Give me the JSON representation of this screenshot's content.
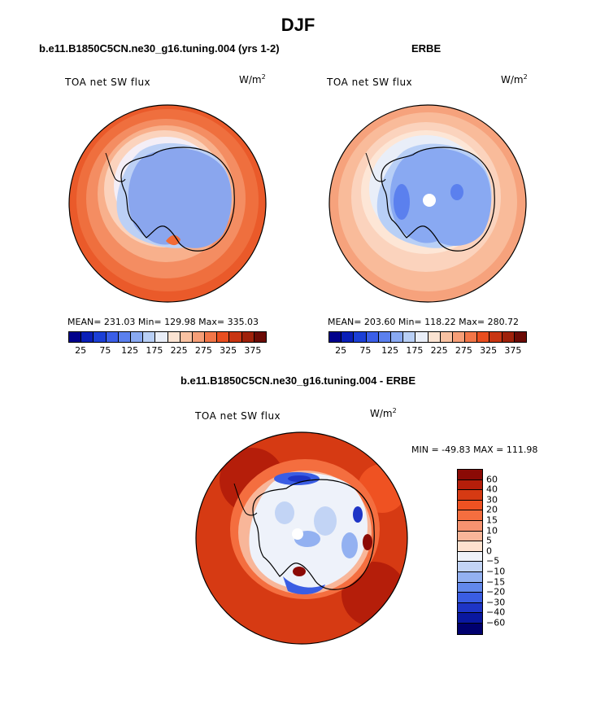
{
  "title": "DJF",
  "panels": {
    "model": {
      "title": "b.e11.B1850C5CN.ne30_g16.tuning.004 (yrs 1-2)",
      "var_label": "TOA net SW flux",
      "units_base": "W/m",
      "units_exp": "2",
      "stats": "MEAN= 231.03   Min= 129.98   Max= 335.03"
    },
    "obs": {
      "title": "ERBE",
      "var_label": "TOA net SW flux",
      "units_base": "W/m",
      "units_exp": "2",
      "stats": "MEAN= 203.60   Min= 118.22   Max= 280.72"
    },
    "diff": {
      "title": "b.e11.B1850C5CN.ne30_g16.tuning.004 - ERBE",
      "var_label": "TOA net SW flux",
      "units_base": "W/m",
      "units_exp": "2",
      "minmax": "MIN = -49.83 MAX = 111.98"
    }
  },
  "colorbar_abs": {
    "labels": [
      "25",
      "75",
      "125",
      "175",
      "225",
      "275",
      "325",
      "375"
    ],
    "colors": [
      "#00008b",
      "#0a1fb8",
      "#1b3fd6",
      "#3a5ee8",
      "#5b80ee",
      "#89a9f2",
      "#b8cff6",
      "#e9eef8",
      "#fbe3d2",
      "#f9c2a2",
      "#f69e77",
      "#f27648",
      "#e94e1f",
      "#c83512",
      "#9f210a",
      "#6b0b05"
    ]
  },
  "colorbar_diff": {
    "labels": [
      "60",
      "40",
      "30",
      "20",
      "15",
      "10",
      "5",
      "0",
      "−5",
      "−10",
      "−15",
      "−20",
      "−30",
      "−40",
      "−60"
    ],
    "colors": [
      "#8b0a05",
      "#b51e0a",
      "#d63a13",
      "#ef5222",
      "#f46e3f",
      "#f69370",
      "#f8b699",
      "#fde1cf",
      "#eef2fa",
      "#c2d4f5",
      "#93b1f1",
      "#6288ec",
      "#3a5de3",
      "#1e35c6",
      "#0a18a0",
      "#00006e"
    ]
  },
  "icons": {
    "map": "south-polar-stereographic-map"
  }
}
